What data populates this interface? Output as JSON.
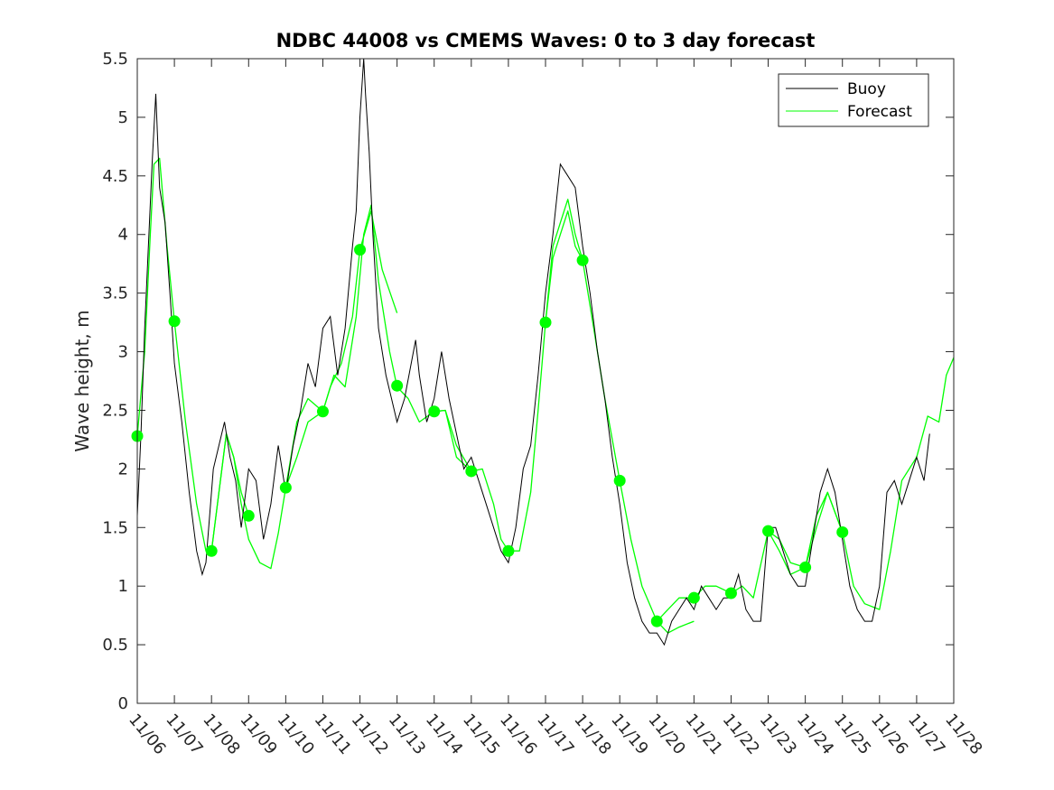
{
  "chart_data": {
    "type": "line",
    "title": "NDBC 44008 vs CMEMS Waves: 0 to 3 day forecast",
    "xlabel": "",
    "ylabel": "Wave height, m",
    "xlim": [
      0,
      22
    ],
    "ylim": [
      0,
      5.5
    ],
    "yticks": [
      0,
      0.5,
      1,
      1.5,
      2,
      2.5,
      3,
      3.5,
      4,
      4.5,
      5,
      5.5
    ],
    "ytick_labels": [
      "0",
      "0.5",
      "1",
      "1.5",
      "2",
      "2.5",
      "3",
      "3.5",
      "4",
      "4.5",
      "5",
      "5.5"
    ],
    "xtick_labels": [
      "11/06",
      "11/07",
      "11/08",
      "11/09",
      "11/10",
      "11/11",
      "11/12",
      "11/13",
      "11/14",
      "11/15",
      "11/16",
      "11/17",
      "11/18",
      "11/19",
      "11/20",
      "11/21",
      "11/22",
      "11/23",
      "11/24",
      "11/25",
      "11/26",
      "11/27",
      "11/28"
    ],
    "xtick_rotation_deg": -50,
    "legend": {
      "location": "top-right",
      "entries": [
        {
          "name": "Buoy",
          "color": "#000000"
        },
        {
          "name": "Forecast",
          "color": "#00ff00"
        }
      ]
    },
    "colors": {
      "buoy": "#000000",
      "forecast": "#00ff00",
      "axis": "#262626"
    },
    "series": [
      {
        "name": "Buoy",
        "x": [
          0,
          0.1,
          0.2,
          0.3,
          0.4,
          0.5,
          0.6,
          0.75,
          0.9,
          1.0,
          1.2,
          1.4,
          1.6,
          1.75,
          1.85,
          1.95,
          2.05,
          2.2,
          2.35,
          2.5,
          2.65,
          2.8,
          3.0,
          3.2,
          3.4,
          3.6,
          3.8,
          4.0,
          4.2,
          4.4,
          4.6,
          4.8,
          5.0,
          5.2,
          5.4,
          5.6,
          5.8,
          5.9,
          6.0,
          6.1,
          6.15,
          6.25,
          6.35,
          6.5,
          6.7,
          6.85,
          7.0,
          7.2,
          7.5,
          7.6,
          7.8,
          8.0,
          8.2,
          8.4,
          8.6,
          8.8,
          9.0,
          9.2,
          9.4,
          9.6,
          9.8,
          10.0,
          10.2,
          10.4,
          10.6,
          10.8,
          11.0,
          11.2,
          11.4,
          11.6,
          11.8,
          12.0,
          12.2,
          12.4,
          12.6,
          12.8,
          13.0,
          13.2,
          13.4,
          13.6,
          13.8,
          14.0,
          14.2,
          14.4,
          14.6,
          14.8,
          15.0,
          15.2,
          15.4,
          15.6,
          15.8,
          16.0,
          16.2,
          16.4,
          16.6,
          16.8,
          17.0,
          17.2,
          17.4,
          17.6,
          17.8,
          18.0,
          18.2,
          18.4,
          18.6,
          18.8,
          19.0,
          19.2,
          19.4,
          19.6,
          19.8,
          20.0,
          20.2,
          20.4,
          20.6,
          20.8,
          21.0,
          21.2,
          21.35
        ],
        "values": [
          1.6,
          2.3,
          3.2,
          3.9,
          4.6,
          5.2,
          4.4,
          4.1,
          3.4,
          2.9,
          2.4,
          1.8,
          1.3,
          1.1,
          1.2,
          1.6,
          2.0,
          2.2,
          2.4,
          2.1,
          1.9,
          1.5,
          2.0,
          1.9,
          1.4,
          1.7,
          2.2,
          1.8,
          2.2,
          2.5,
          2.9,
          2.7,
          3.2,
          3.3,
          2.8,
          3.2,
          3.9,
          4.2,
          5.0,
          5.5,
          5.2,
          4.7,
          4.0,
          3.2,
          2.8,
          2.6,
          2.4,
          2.6,
          3.1,
          2.8,
          2.4,
          2.6,
          3.0,
          2.6,
          2.3,
          2.0,
          2.1,
          1.9,
          1.7,
          1.5,
          1.3,
          1.2,
          1.5,
          2.0,
          2.2,
          2.8,
          3.5,
          4.0,
          4.6,
          4.5,
          4.4,
          3.9,
          3.5,
          3.0,
          2.6,
          2.1,
          1.7,
          1.2,
          0.9,
          0.7,
          0.6,
          0.6,
          0.5,
          0.7,
          0.8,
          0.9,
          0.8,
          1.0,
          0.9,
          0.8,
          0.9,
          0.9,
          1.1,
          0.8,
          0.7,
          0.7,
          1.5,
          1.5,
          1.3,
          1.1,
          1.0,
          1.0,
          1.4,
          1.8,
          2.0,
          1.8,
          1.4,
          1.0,
          0.8,
          0.7,
          0.7,
          1.0,
          1.8,
          1.9,
          1.7,
          1.9,
          2.1,
          1.9,
          2.3
        ]
      },
      {
        "name": "Forecast",
        "segments": [
          {
            "x": [
              0,
              0.2,
              0.35,
              0.45,
              0.6,
              0.8,
              1.0,
              1.3,
              1.6,
              1.85,
              2.0,
              2.2,
              2.4,
              2.6,
              2.8,
              3.0
            ],
            "values": [
              2.28,
              3.0,
              4.0,
              4.6,
              4.65,
              3.9,
              3.26,
              2.4,
              1.7,
              1.3,
              1.3,
              1.8,
              2.3,
              2.1,
              1.8,
              1.6
            ]
          },
          {
            "x": [
              2.0,
              2.2,
              2.4,
              2.6,
              2.8,
              3.0,
              3.3,
              3.6,
              3.8,
              4.0,
              4.3,
              4.6,
              5.0,
              5.2,
              5.5,
              5.8,
              6.0,
              6.3,
              6.6,
              7.0
            ],
            "values": [
              1.3,
              1.8,
              2.3,
              2.1,
              1.7,
              1.4,
              1.2,
              1.15,
              1.45,
              1.84,
              2.1,
              2.4,
              2.49,
              2.7,
              2.9,
              3.3,
              3.87,
              4.2,
              3.7,
              3.33
            ]
          },
          {
            "x": [
              4.0,
              4.3,
              4.6,
              5.0,
              5.3,
              5.6,
              5.9,
              6.1,
              6.3,
              6.5,
              6.8,
              7.0,
              7.3,
              7.6,
              8.0,
              8.3,
              8.6,
              9.0
            ],
            "values": [
              1.84,
              2.4,
              2.6,
              2.49,
              2.8,
              2.7,
              3.3,
              4.0,
              4.25,
              3.6,
              3.0,
              2.7,
              2.6,
              2.4,
              2.49,
              2.5,
              2.2,
              1.98
            ]
          },
          {
            "x": [
              8.0,
              8.3,
              8.6,
              9.0,
              9.3,
              9.6,
              9.8,
              10.0,
              10.3,
              10.6,
              10.8,
              11.0,
              11.2,
              11.4,
              11.6,
              11.8,
              12.0
            ],
            "values": [
              2.49,
              2.5,
              2.1,
              1.98,
              2.0,
              1.7,
              1.4,
              1.3,
              1.3,
              1.8,
              2.5,
              3.25,
              3.9,
              4.1,
              4.3,
              4.0,
              3.78
            ]
          },
          {
            "x": [
              11.0,
              11.2,
              11.4,
              11.6,
              11.8,
              12.0,
              12.3,
              12.6,
              13.0,
              13.3,
              13.6,
              14.0,
              14.3,
              14.6,
              15.0
            ],
            "values": [
              3.25,
              3.8,
              4.0,
              4.2,
              3.9,
              3.78,
              3.2,
              2.6,
              1.9,
              1.4,
              1.0,
              0.7,
              0.6,
              0.65,
              0.7
            ]
          },
          {
            "x": [
              14.0,
              14.3,
              14.6,
              15.0,
              15.3,
              15.6,
              16.0,
              16.3,
              16.6,
              17.0,
              17.3,
              17.6,
              18.0,
              18.3,
              18.6,
              19.0
            ],
            "values": [
              0.7,
              0.8,
              0.9,
              0.9,
              1.0,
              1.0,
              0.94,
              1.0,
              0.9,
              1.47,
              1.3,
              1.1,
              1.16,
              1.5,
              1.8,
              1.46
            ]
          },
          {
            "x": [
              17.0,
              17.3,
              17.6,
              18.0,
              18.3,
              18.6,
              19.0,
              19.3,
              19.6,
              20.0,
              20.3,
              20.6,
              21.0,
              21.3,
              21.6,
              21.8,
              22.0
            ],
            "values": [
              1.47,
              1.4,
              1.2,
              1.16,
              1.6,
              1.8,
              1.46,
              1.0,
              0.85,
              0.8,
              1.3,
              1.9,
              2.1,
              2.45,
              2.4,
              2.8,
              2.95
            ]
          }
        ],
        "markers": {
          "x": [
            0,
            1,
            2,
            3,
            4,
            5,
            6,
            7,
            8,
            9,
            10,
            11,
            12,
            13,
            14,
            15,
            16,
            17,
            18,
            19
          ],
          "values": [
            2.28,
            3.26,
            1.3,
            1.6,
            1.84,
            2.49,
            3.87,
            2.71,
            2.49,
            1.98,
            1.3,
            3.25,
            3.78,
            1.9,
            0.7,
            0.9,
            0.94,
            1.47,
            1.16,
            1.46
          ]
        }
      }
    ]
  }
}
